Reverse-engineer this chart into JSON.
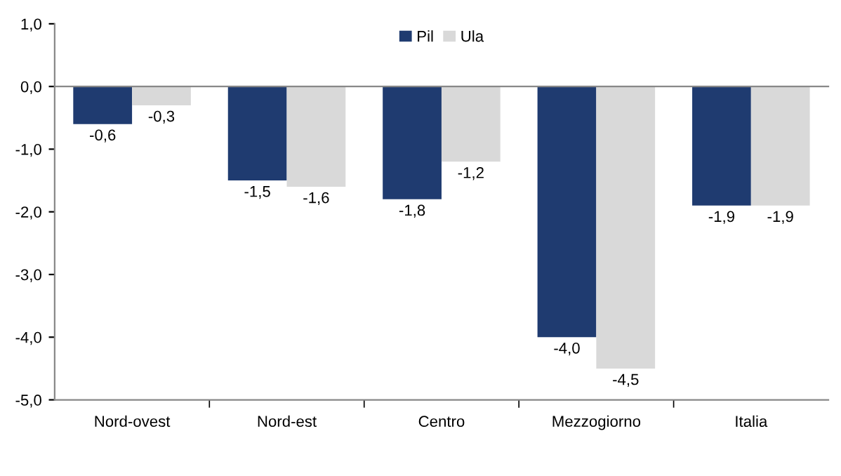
{
  "chart_data": {
    "type": "bar",
    "categories": [
      "Nord-ovest",
      "Nord-est",
      "Centro",
      "Mezzogiorno",
      "Italia"
    ],
    "series": [
      {
        "name": "Pil",
        "color": "#1f3b70",
        "values": [
          -0.6,
          -1.5,
          -1.8,
          -4.0,
          -1.9
        ],
        "value_labels": [
          "-0,6",
          "-1,5",
          "-1,8",
          "-4,0",
          "-1,9"
        ]
      },
      {
        "name": "Ula",
        "color": "#d9d9d9",
        "values": [
          -0.3,
          -1.6,
          -1.2,
          -4.5,
          -1.9
        ],
        "value_labels": [
          "-0,3",
          "-1,6",
          "-1,2",
          "-4,5",
          "-1,9"
        ]
      }
    ],
    "ylim": [
      -5,
      1
    ],
    "yticks": [
      {
        "value": -5,
        "label": "-5,0"
      },
      {
        "value": -4,
        "label": "-4,0"
      },
      {
        "value": -3,
        "label": "-3,0"
      },
      {
        "value": -2,
        "label": "-2,0"
      },
      {
        "value": -1,
        "label": "-1,0"
      },
      {
        "value": 0,
        "label": "0,0"
      },
      {
        "value": 1,
        "label": "1,0"
      }
    ],
    "legend": "top"
  }
}
